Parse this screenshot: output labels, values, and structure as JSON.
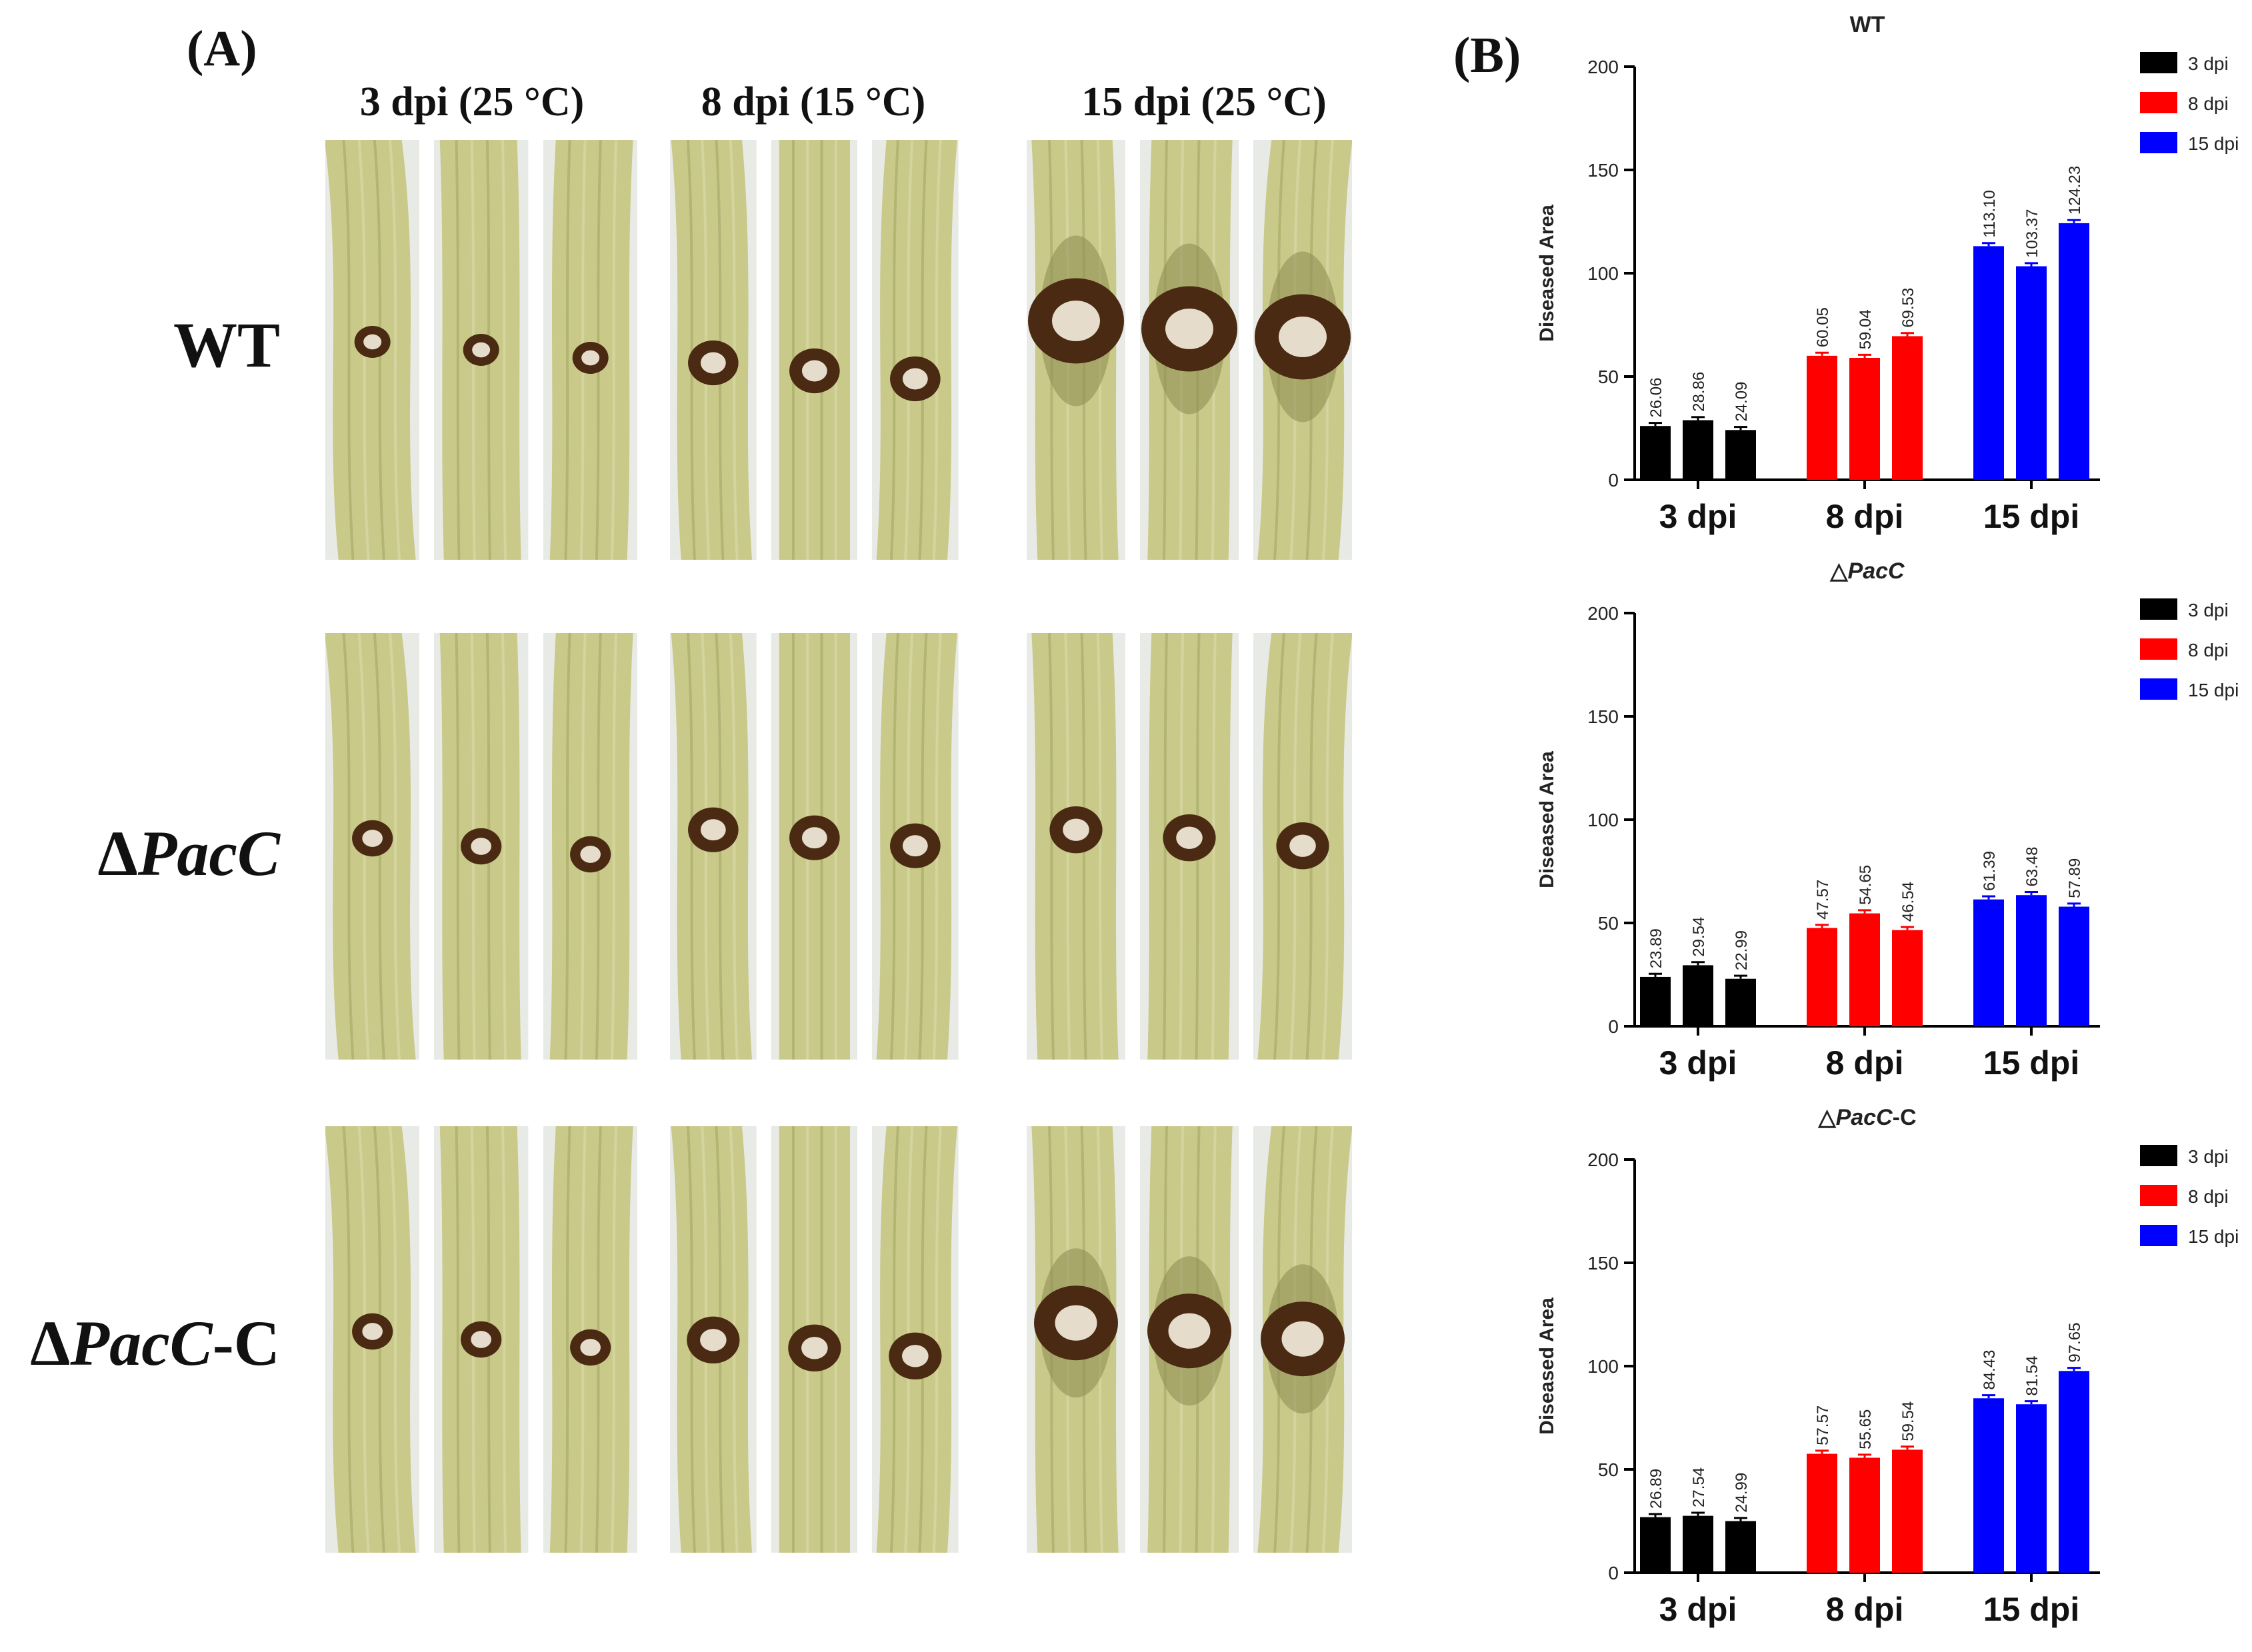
{
  "panel_a": {
    "label": "(A)",
    "columns": [
      "3 dpi (25 °C)",
      "8 dpi (15 °C)",
      "15 dpi (25 °C)"
    ],
    "rows": [
      {
        "prefix": "",
        "italic": "",
        "suffix": "WT"
      },
      {
        "prefix": "Δ",
        "italic": "PacC",
        "suffix": ""
      },
      {
        "prefix": "Δ",
        "italic": "PacC",
        "suffix": "-C"
      }
    ]
  },
  "panel_b": {
    "label": "(B)"
  },
  "colors": {
    "3 dpi": "#000000",
    "8 dpi": "#ff0000",
    "15 dpi": "#0000ff",
    "stem_light": "#c9c98a",
    "stem_dark": "#8a8a4e",
    "lesion": "#4a2a12"
  },
  "chart_data": [
    {
      "type": "bar",
      "title": "WT",
      "title_prefix": "",
      "title_italic": "",
      "title_suffix": "WT",
      "ylabel": "Diseased Area",
      "ylim": [
        0,
        200
      ],
      "yticks": [
        0,
        50,
        100,
        150,
        200
      ],
      "categories": [
        "3 dpi",
        "8 dpi",
        "15 dpi"
      ],
      "legend": [
        "3 dpi",
        "8 dpi",
        "15 dpi"
      ],
      "legend_position": "top-right",
      "values": [
        [
          26.06,
          28.86,
          24.09
        ],
        [
          60.05,
          59.04,
          69.53
        ],
        [
          113.1,
          103.37,
          124.23
        ]
      ],
      "value_labels": [
        [
          "26.06",
          "28.86",
          "24.09"
        ],
        [
          "60.05",
          "59.04",
          "69.53"
        ],
        [
          "113.10",
          "103.37",
          "124.23"
        ]
      ]
    },
    {
      "type": "bar",
      "title": "△PacC",
      "title_prefix": "△",
      "title_italic": "PacC",
      "title_suffix": "",
      "ylabel": "Diseased Area",
      "ylim": [
        0,
        200
      ],
      "yticks": [
        0,
        50,
        100,
        150,
        200
      ],
      "categories": [
        "3 dpi",
        "8 dpi",
        "15 dpi"
      ],
      "legend": [
        "3 dpi",
        "8 dpi",
        "15 dpi"
      ],
      "legend_position": "top-right",
      "values": [
        [
          23.89,
          29.54,
          22.99
        ],
        [
          47.57,
          54.65,
          46.54
        ],
        [
          61.39,
          63.48,
          57.89
        ]
      ],
      "value_labels": [
        [
          "23.89",
          "29.54",
          "22.99"
        ],
        [
          "47.57",
          "54.65",
          "46.54"
        ],
        [
          "61.39",
          "63.48",
          "57.89"
        ]
      ]
    },
    {
      "type": "bar",
      "title": "△PacC-C",
      "title_prefix": "△",
      "title_italic": "PacC",
      "title_suffix": "-C",
      "ylabel": "Diseased Area",
      "ylim": [
        0,
        200
      ],
      "yticks": [
        0,
        50,
        100,
        150,
        200
      ],
      "categories": [
        "3 dpi",
        "8 dpi",
        "15 dpi"
      ],
      "legend": [
        "3 dpi",
        "8 dpi",
        "15 dpi"
      ],
      "legend_position": "top-right",
      "values": [
        [
          26.89,
          27.54,
          24.99
        ],
        [
          57.57,
          55.65,
          59.54
        ],
        [
          84.43,
          81.54,
          97.65
        ]
      ],
      "value_labels": [
        [
          "26.89",
          "27.54",
          "24.99"
        ],
        [
          "57.57",
          "55.65",
          "59.54"
        ],
        [
          "84.43",
          "81.54",
          "97.65"
        ]
      ]
    }
  ]
}
